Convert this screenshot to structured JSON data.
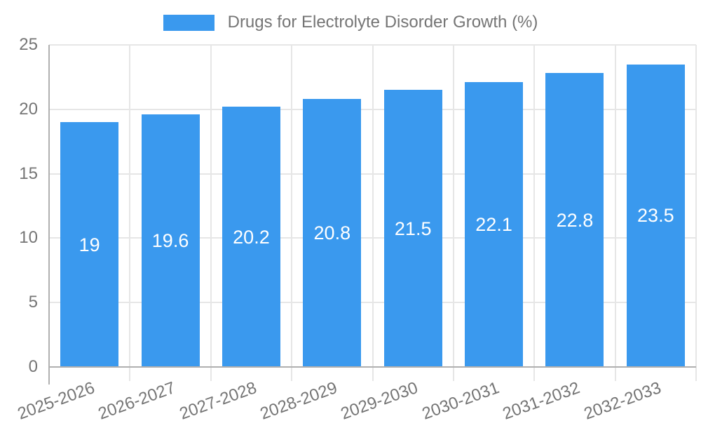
{
  "legend": {
    "label": "Drugs for Electrolyte Disorder Growth (%)"
  },
  "chart_data": {
    "type": "bar",
    "title": "Drugs for Electrolyte Disorder Growth (%)",
    "categories": [
      "2025-2026",
      "2026-2027",
      "2027-2028",
      "2028-2029",
      "2029-2030",
      "2030-2031",
      "2031-2032",
      "2032-2033"
    ],
    "values": [
      19,
      19.6,
      20.2,
      20.8,
      21.5,
      22.1,
      22.8,
      23.5
    ],
    "value_labels": [
      "19",
      "19.6",
      "20.2",
      "20.8",
      "21.5",
      "22.1",
      "22.8",
      "23.5"
    ],
    "series_name": "Drugs for Electrolyte Disorder Growth (%)",
    "xlabel": "",
    "ylabel": "",
    "ylim": [
      0,
      25
    ],
    "yticks": [
      0,
      5,
      10,
      15,
      20,
      25
    ],
    "grid": true,
    "legend_position": "top-center",
    "colors": {
      "bar": "#3a99ee",
      "grid_line": "#e6e6e6",
      "axis_line": "#b0b0b0",
      "label_text": "#757575",
      "value_text": "#ffffff",
      "background": "#ffffff"
    }
  }
}
